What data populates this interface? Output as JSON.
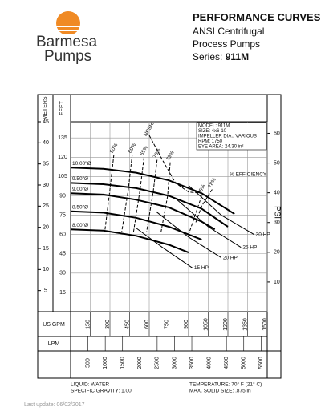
{
  "header": {
    "brand": "Barmesa",
    "brand_sub": "Pumps",
    "title": "PERFORMANCE CURVES",
    "line1": "ANSI Centrifugal",
    "line2": "Process Pumps",
    "series_label": "Series:",
    "series_value": "911M"
  },
  "footer": {
    "update": "Last update: 06/02/2017"
  },
  "chart_data": {
    "type": "line",
    "grid": true,
    "ytitle": "FEET",
    "y3title": "METERS",
    "y2title": "PSI",
    "xtitle": "US GPM",
    "x2title": "LPM",
    "xlim": [
      0,
      1500
    ],
    "xticks": [
      150,
      300,
      450,
      600,
      750,
      900,
      1050,
      1200,
      1350,
      1500
    ],
    "x2lim": [
      0,
      5678
    ],
    "x2ticks": [
      500,
      1000,
      1500,
      2000,
      2500,
      3000,
      3500,
      4000,
      4500,
      5000,
      5500
    ],
    "ylim": [
      0,
      147.6
    ],
    "yticks": [
      15,
      30,
      45,
      60,
      75,
      90,
      105,
      120,
      135
    ],
    "y2lim": [
      0,
      63.9
    ],
    "y2ticks": [
      10,
      20,
      30,
      40,
      50,
      60
    ],
    "y3lim": [
      0,
      45
    ],
    "y3ticks": [
      5,
      10,
      15,
      20,
      25,
      30,
      35,
      40,
      45
    ],
    "info": [
      "MODEL: 911M",
      "SIZE: 4x6-10",
      "IMPELLER DIA.: VARIOUS",
      "RPM: 1750",
      "EYE AREA: 24.30 in²"
    ],
    "efficiency_label": "% EFFICIENCY",
    "conditions": [
      "LIQUID: WATER",
      "SPECIFIC GRAVITY: 1.00",
      "TEMPERATURE: 70° F (21° C)",
      "MAX. SOLID SIZE: .875 in"
    ],
    "series": [
      {
        "name": "10.00\"Ø",
        "color": "#000",
        "width": 2,
        "dash": false,
        "label_at": "start",
        "x": [
          0,
          250,
          500,
          750,
          1000,
          1250
        ],
        "values": [
          112,
          111,
          108,
          102,
          92,
          76
        ]
      },
      {
        "name": "9.50\"Ø",
        "color": "#000",
        "width": 2,
        "dash": false,
        "label_at": "start",
        "x": [
          0,
          250,
          500,
          750,
          1000,
          1200
        ],
        "values": [
          100,
          99,
          96,
          90,
          80,
          66
        ]
      },
      {
        "name": "9.00\"Ø",
        "color": "#000",
        "width": 2,
        "dash": false,
        "label_at": "start",
        "x": [
          0,
          250,
          500,
          750,
          1000,
          1100
        ],
        "values": [
          92,
          91,
          87,
          81,
          70,
          64
        ]
      },
      {
        "name": "8.50\"Ø",
        "color": "#000",
        "width": 2,
        "dash": false,
        "label_at": "start",
        "x": [
          0,
          250,
          500,
          750,
          1000
        ],
        "values": [
          78,
          77,
          73,
          66,
          56
        ]
      },
      {
        "name": "8.00\"Ø",
        "color": "#000",
        "width": 2,
        "dash": false,
        "label_at": "start",
        "x": [
          0,
          250,
          500,
          750,
          900
        ],
        "values": [
          64,
          63,
          59,
          52,
          46
        ]
      },
      {
        "name": "NPSHr",
        "color": "#000",
        "width": 1,
        "dash": true,
        "label_at": "start",
        "x": [
          600,
          700,
          800,
          900,
          1000
        ],
        "values": [
          137,
          118,
          100,
          93,
          92
        ]
      },
      {
        "name": "50%",
        "color": "#000",
        "width": 1,
        "dash": true,
        "label_at": "start",
        "x": [
          330,
          300,
          260
        ],
        "values": [
          122,
          95,
          62
        ]
      },
      {
        "name": "60%",
        "color": "#000",
        "width": 1,
        "dash": true,
        "label_at": "start",
        "x": [
          470,
          440,
          390
        ],
        "values": [
          122,
          95,
          62
        ]
      },
      {
        "name": "65%",
        "color": "#000",
        "width": 1,
        "dash": true,
        "label_at": "start",
        "x": [
          560,
          530,
          480
        ],
        "values": [
          120,
          95,
          62
        ]
      },
      {
        "name": "70%",
        "color": "#000",
        "width": 1,
        "dash": true,
        "label_at": "start",
        "x": [
          660,
          630,
          580
        ],
        "values": [
          118,
          93,
          62
        ]
      },
      {
        "name": "73%",
        "color": "#000",
        "width": 1,
        "dash": true,
        "label_at": "start",
        "x": [
          760,
          740,
          690
        ],
        "values": [
          116,
          90,
          62
        ]
      },
      {
        "name": "75%",
        "color": "#000",
        "width": 1,
        "dash": true,
        "label_at": "start",
        "x": [
          1000,
          960,
          900
        ],
        "values": [
          90,
          78,
          60
        ]
      },
      {
        "name": "78%",
        "color": "#000",
        "width": 1,
        "dash": true,
        "label_at": "start",
        "x": [
          1080,
          1000,
          950
        ],
        "values": [
          95,
          82,
          68
        ]
      },
      {
        "name": "15 HP",
        "color": "#000",
        "width": 1,
        "dash": false,
        "label_at": "end",
        "x": [
          500,
          700,
          930
        ],
        "values": [
          65,
          50,
          34
        ]
      },
      {
        "name": "20 HP",
        "color": "#000",
        "width": 1,
        "dash": false,
        "label_at": "end",
        "x": [
          650,
          900,
          1150
        ],
        "values": [
          78,
          58,
          42
        ]
      },
      {
        "name": "25 HP",
        "color": "#000",
        "width": 1,
        "dash": false,
        "label_at": "end",
        "x": [
          800,
          1050,
          1300
        ],
        "values": [
          88,
          66,
          50
        ]
      },
      {
        "name": "30 HP",
        "color": "#000",
        "width": 1,
        "dash": false,
        "label_at": "end",
        "x": [
          900,
          1150,
          1400
        ],
        "values": [
          98,
          75,
          60
        ]
      }
    ]
  }
}
